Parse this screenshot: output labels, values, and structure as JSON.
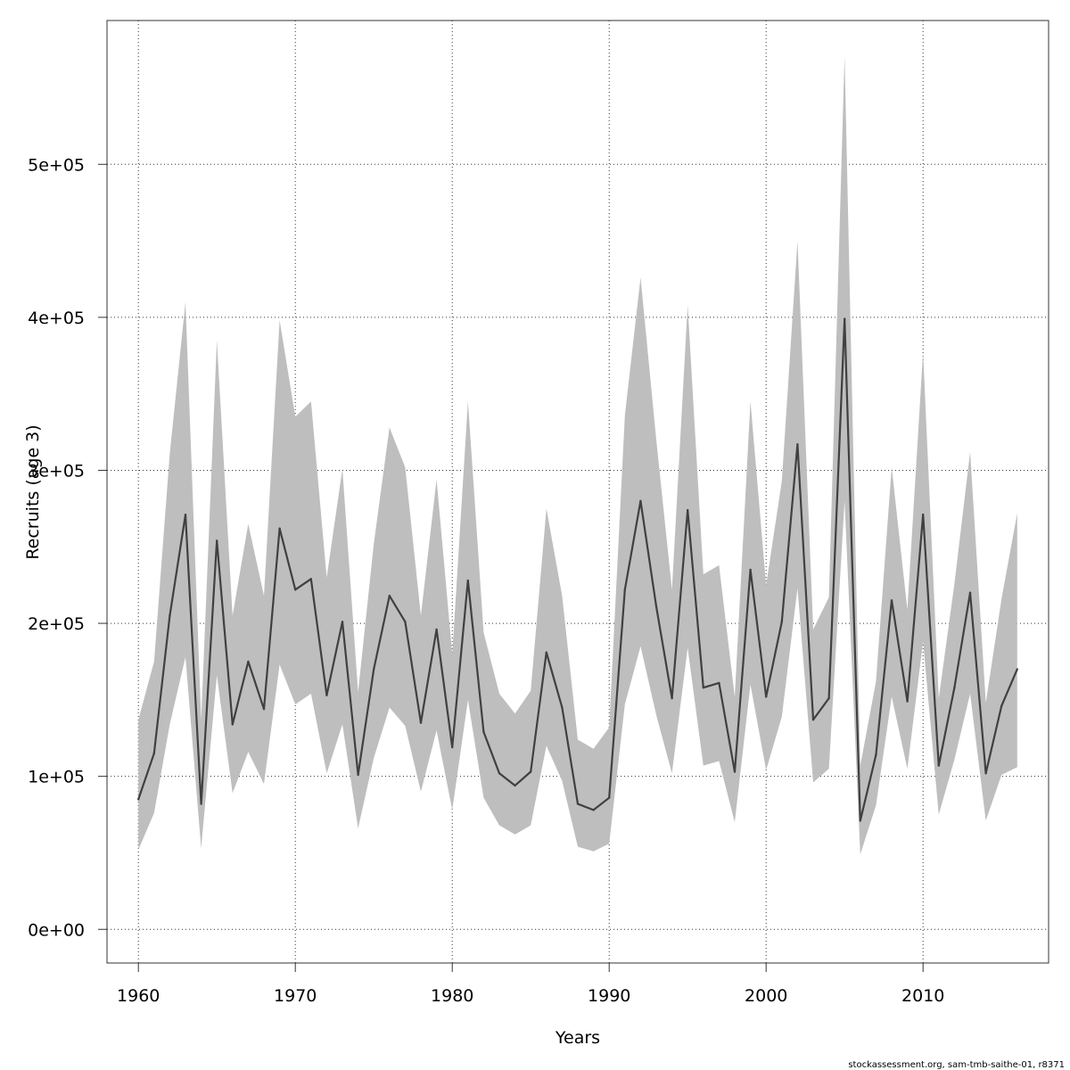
{
  "chart_data": {
    "type": "line",
    "title": "",
    "xlabel": "Years",
    "ylabel": "Recruits (age 3)",
    "xlim": [
      1958,
      2018
    ],
    "ylim": [
      -22000,
      594000
    ],
    "x_ticks": [
      1960,
      1970,
      1980,
      1990,
      2000,
      2010
    ],
    "x_tick_labels": [
      "1960",
      "1970",
      "1980",
      "1990",
      "2000",
      "2010"
    ],
    "y_ticks": [
      0,
      100000,
      200000,
      300000,
      400000,
      500000
    ],
    "y_tick_labels": [
      "0e+00",
      "1e+05",
      "2e+05",
      "3e+05",
      "4e+05",
      "5e+05"
    ],
    "grid": true,
    "colors": {
      "line": "#404040",
      "band": "#bebebe",
      "grid": "#333333"
    },
    "x": [
      1960,
      1961,
      1962,
      1963,
      1964,
      1965,
      1966,
      1967,
      1968,
      1969,
      1970,
      1971,
      1972,
      1973,
      1974,
      1975,
      1976,
      1977,
      1978,
      1979,
      1980,
      1981,
      1982,
      1983,
      1984,
      1985,
      1986,
      1987,
      1988,
      1989,
      1990,
      1991,
      1992,
      1993,
      1994,
      1995,
      1996,
      1997,
      1998,
      1999,
      2000,
      2001,
      2002,
      2003,
      2004,
      2005,
      2006,
      2007,
      2008,
      2009,
      2010,
      2011,
      2012,
      2013,
      2014,
      2015,
      2016
    ],
    "series": [
      {
        "role": "estimate",
        "values": [
          85000,
          115000,
          205000,
          271000,
          82000,
          254000,
          134000,
          175000,
          144000,
          262000,
          222000,
          229000,
          153000,
          201000,
          101000,
          170000,
          218000,
          201000,
          135000,
          196000,
          119000,
          228000,
          129000,
          102000,
          94000,
          103000,
          181000,
          145000,
          82000,
          78000,
          86000,
          222000,
          280000,
          211000,
          151000,
          274000,
          158000,
          161000,
          103000,
          235000,
          152000,
          201000,
          317000,
          137000,
          151000,
          399000,
          71000,
          114000,
          215000,
          149000,
          271000,
          107000,
          158000,
          220000,
          102000,
          146000,
          170000
        ]
      },
      {
        "role": "upper",
        "values": [
          137000,
          175000,
          311000,
          410000,
          137000,
          385000,
          205000,
          265000,
          218000,
          398000,
          335000,
          345000,
          230000,
          301000,
          155000,
          252000,
          328000,
          302000,
          205000,
          294000,
          180000,
          345000,
          194000,
          154000,
          141000,
          156000,
          275000,
          218000,
          124000,
          118000,
          132000,
          336000,
          426000,
          320000,
          222000,
          408000,
          232000,
          238000,
          152000,
          345000,
          225000,
          293000,
          450000,
          196000,
          217000,
          571000,
          107000,
          162000,
          302000,
          209000,
          377000,
          151000,
          226000,
          312000,
          148000,
          216000,
          272000
        ]
      },
      {
        "role": "lower",
        "values": [
          52000,
          76000,
          134000,
          178000,
          53000,
          166000,
          89000,
          116000,
          95000,
          173000,
          147000,
          154000,
          102000,
          134000,
          66000,
          112000,
          145000,
          133000,
          90000,
          130000,
          78000,
          150000,
          86000,
          68000,
          62000,
          68000,
          120000,
          97000,
          54000,
          51000,
          56000,
          147000,
          185000,
          140000,
          102000,
          184000,
          107000,
          110000,
          70000,
          160000,
          104000,
          139000,
          223000,
          96000,
          105000,
          280000,
          49000,
          81000,
          152000,
          105000,
          188000,
          75000,
          111000,
          154000,
          71000,
          101000,
          106000
        ]
      }
    ]
  },
  "footer_text": "stockassessment.org, sam-tmb-saithe-01, r8371"
}
